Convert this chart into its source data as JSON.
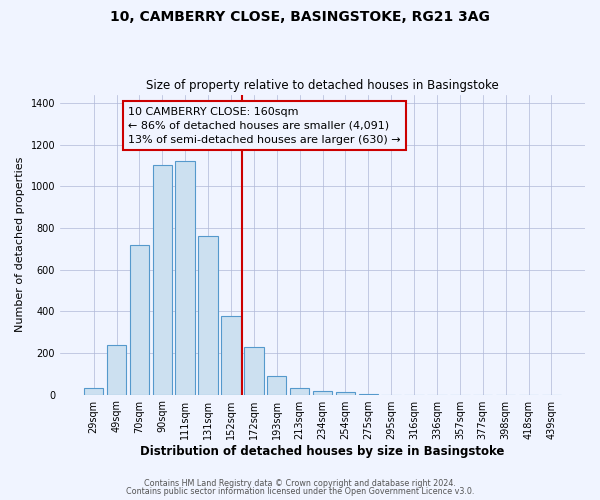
{
  "title": "10, CAMBERRY CLOSE, BASINGSTOKE, RG21 3AG",
  "subtitle": "Size of property relative to detached houses in Basingstoke",
  "xlabel": "Distribution of detached houses by size in Basingstoke",
  "ylabel": "Number of detached properties",
  "bar_labels": [
    "29sqm",
    "49sqm",
    "70sqm",
    "90sqm",
    "111sqm",
    "131sqm",
    "152sqm",
    "172sqm",
    "193sqm",
    "213sqm",
    "234sqm",
    "254sqm",
    "275sqm",
    "295sqm",
    "316sqm",
    "336sqm",
    "357sqm",
    "377sqm",
    "398sqm",
    "418sqm",
    "439sqm"
  ],
  "bar_heights": [
    30,
    240,
    720,
    1100,
    1120,
    760,
    375,
    230,
    88,
    30,
    18,
    12,
    5,
    0,
    0,
    0,
    0,
    0,
    0,
    0,
    0
  ],
  "bar_color": "#cce0f0",
  "bar_edge_color": "#5599cc",
  "vline_index": 6,
  "vline_color": "#cc0000",
  "annotation_line1": "10 CAMBERRY CLOSE: 160sqm",
  "annotation_line2": "← 86% of detached houses are smaller (4,091)",
  "annotation_line3": "13% of semi-detached houses are larger (630) →",
  "annotation_box_edgecolor": "#cc0000",
  "ylim": [
    0,
    1440
  ],
  "yticks": [
    0,
    200,
    400,
    600,
    800,
    1000,
    1200,
    1400
  ],
  "footer_line1": "Contains HM Land Registry data © Crown copyright and database right 2024.",
  "footer_line2": "Contains public sector information licensed under the Open Government Licence v3.0.",
  "bg_color": "#f0f4ff",
  "grid_color": "#b0b8d8"
}
